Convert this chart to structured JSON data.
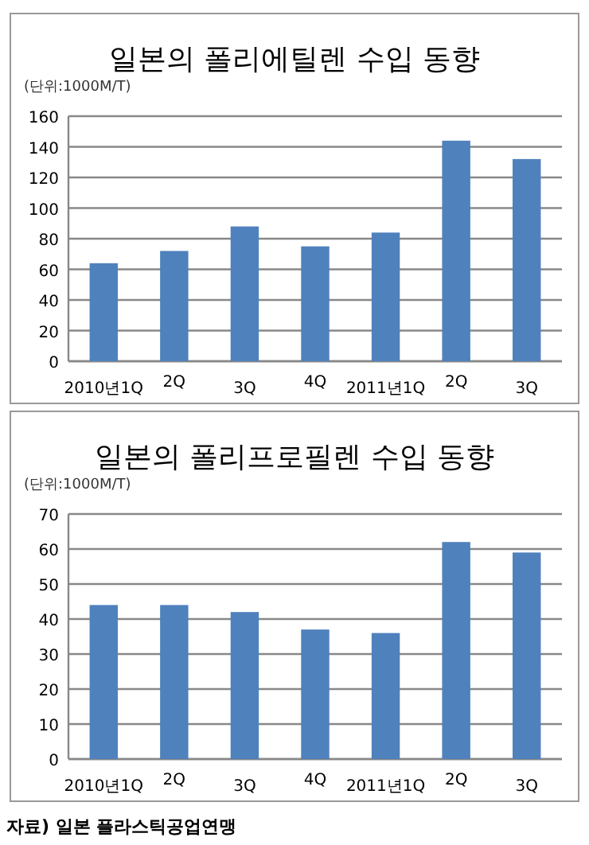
{
  "chart_data": [
    {
      "type": "bar",
      "title": "일본의 폴리에틸렌 수입 동향",
      "ylabel": "(단위:1000M/T)",
      "categories": [
        "2010년1Q",
        "2Q",
        "3Q",
        "4Q",
        "2011년1Q",
        "2Q",
        "3Q"
      ],
      "values": [
        64,
        72,
        88,
        75,
        84,
        144,
        132
      ],
      "color": "#4f81bd",
      "ylim": [
        0,
        160
      ],
      "yticks": [
        0,
        20,
        40,
        60,
        80,
        100,
        120,
        140,
        160
      ],
      "grid": "y"
    },
    {
      "type": "bar",
      "title": "일본의 폴리프로필렌 수입 동향",
      "ylabel": "(단위:1000M/T)",
      "categories": [
        "2010년1Q",
        "2Q",
        "3Q",
        "4Q",
        "2011년1Q",
        "2Q",
        "3Q"
      ],
      "values": [
        44,
        44,
        42,
        37,
        36,
        62,
        59
      ],
      "color": "#4f81bd",
      "ylim": [
        0,
        70
      ],
      "yticks": [
        0,
        10,
        20,
        30,
        40,
        50,
        60,
        70
      ],
      "grid": "y",
      "annotations": [
        "자료) 일본 플라스틱공업연맹"
      ]
    }
  ]
}
